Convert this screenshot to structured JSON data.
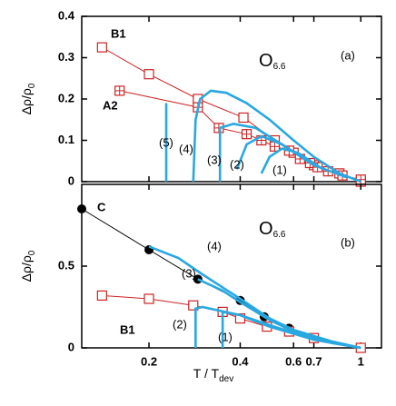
{
  "chart_data": [
    {
      "type": "line",
      "xscale": "log",
      "xlim": [
        0.12,
        1.17
      ],
      "ylim": [
        0,
        0.4
      ],
      "yticks": [
        0,
        0.1,
        0.2,
        0.3,
        0.4
      ],
      "ylabel": {
        "text": "Δρ/ρ",
        "sub": "0"
      },
      "annotations": [
        {
          "text": "O",
          "sub": "6.6"
        },
        {
          "text": "(a)"
        }
      ],
      "series": [
        {
          "name": "B1",
          "color": "#cc2222",
          "marker": "square",
          "x": [
            0.14,
            0.2,
            0.29,
            0.41,
            0.52,
            0.6,
            0.7,
            0.85,
            1.0
          ],
          "values": [
            0.325,
            0.26,
            0.2,
            0.155,
            0.1,
            0.07,
            0.04,
            0.02,
            0.0
          ]
        },
        {
          "name": "A2",
          "color": "#cc2222",
          "marker": "plus-square",
          "x": [
            0.16,
            0.29,
            0.34,
            0.42,
            0.47,
            0.52,
            0.58,
            0.63,
            0.68,
            0.72,
            0.78,
            0.87,
            1.0
          ],
          "values": [
            0.22,
            0.18,
            0.13,
            0.115,
            0.1,
            0.085,
            0.075,
            0.055,
            0.045,
            0.035,
            0.025,
            0.015,
            0.005
          ]
        },
        {
          "name": "(5)",
          "color": "#29a8e0",
          "x": [
            0.228,
            0.228
          ],
          "values": [
            0.0,
            0.19
          ]
        },
        {
          "name": "(4)",
          "color": "#29a8e0",
          "x": [
            0.28,
            0.285,
            0.295,
            0.32,
            0.36,
            0.42,
            0.5,
            0.6,
            0.7,
            0.85,
            1.0
          ],
          "values": [
            0.0,
            0.15,
            0.2,
            0.22,
            0.215,
            0.19,
            0.15,
            0.1,
            0.06,
            0.02,
            0.0
          ]
        },
        {
          "name": "(3)",
          "color": "#29a8e0",
          "x": [
            0.343,
            0.343,
            0.38,
            0.45,
            0.55,
            0.7,
            0.9
          ],
          "values": [
            0.0,
            0.13,
            0.14,
            0.13,
            0.09,
            0.04,
            0.01
          ]
        },
        {
          "name": "(2)",
          "color": "#29a8e0",
          "x": [
            0.39,
            0.42,
            0.47,
            0.55,
            0.7
          ],
          "values": [
            0.03,
            0.09,
            0.11,
            0.09,
            0.04
          ]
        },
        {
          "name": "(1)",
          "color": "#29a8e0",
          "x": [
            0.47,
            0.5,
            0.55,
            0.62,
            0.75
          ],
          "values": [
            0.02,
            0.06,
            0.08,
            0.07,
            0.03
          ]
        }
      ]
    },
    {
      "type": "line",
      "xscale": "log",
      "xlim": [
        0.12,
        1.17
      ],
      "ylim": [
        0,
        1.0
      ],
      "yticks": [
        0,
        0.5
      ],
      "xticks": [
        0.2,
        0.4,
        0.6,
        0.7,
        1
      ],
      "xlabel": {
        "text": "T / T",
        "sub": "dev"
      },
      "ylabel": {
        "text": "Δρ/ρ",
        "sub": "0"
      },
      "annotations": [
        {
          "text": "O",
          "sub": "6.6"
        },
        {
          "text": "(b)"
        }
      ],
      "series": [
        {
          "name": "C",
          "color": "#000000",
          "marker": "circle",
          "x": [
            0.12,
            0.2,
            0.29,
            0.4,
            0.48,
            0.58
          ],
          "values": [
            0.85,
            0.6,
            0.42,
            0.29,
            0.19,
            0.12
          ]
        },
        {
          "name": "B1",
          "color": "#cc2222",
          "marker": "square",
          "x": [
            0.14,
            0.2,
            0.28,
            0.35,
            0.4,
            0.49,
            0.58,
            0.7,
            1.0
          ],
          "values": [
            0.32,
            0.3,
            0.26,
            0.22,
            0.18,
            0.13,
            0.1,
            0.06,
            0.0
          ]
        },
        {
          "name": "(4)",
          "color": "#29a8e0",
          "x": [
            0.2,
            0.25,
            0.3,
            0.4,
            0.5,
            0.6,
            0.8,
            1.0
          ],
          "values": [
            0.62,
            0.55,
            0.45,
            0.3,
            0.18,
            0.11,
            0.04,
            0.0
          ]
        },
        {
          "name": "(3)",
          "color": "#29a8e0",
          "x": [
            0.29,
            0.35,
            0.4,
            0.5,
            0.6,
            0.8,
            1.0
          ],
          "values": [
            0.42,
            0.35,
            0.28,
            0.17,
            0.1,
            0.03,
            0.0
          ]
        },
        {
          "name": "(2)",
          "color": "#29a8e0",
          "x": [
            0.285,
            0.285,
            0.3,
            0.4,
            0.5,
            0.7,
            1.0
          ],
          "values": [
            0.0,
            0.24,
            0.25,
            0.2,
            0.14,
            0.05,
            0.0
          ]
        },
        {
          "name": "(1)",
          "color": "#29a8e0",
          "x": [
            0.35,
            0.35,
            0.4,
            0.5,
            0.7,
            1.0
          ],
          "values": [
            0.0,
            0.22,
            0.2,
            0.13,
            0.05,
            0.0
          ]
        }
      ]
    }
  ]
}
